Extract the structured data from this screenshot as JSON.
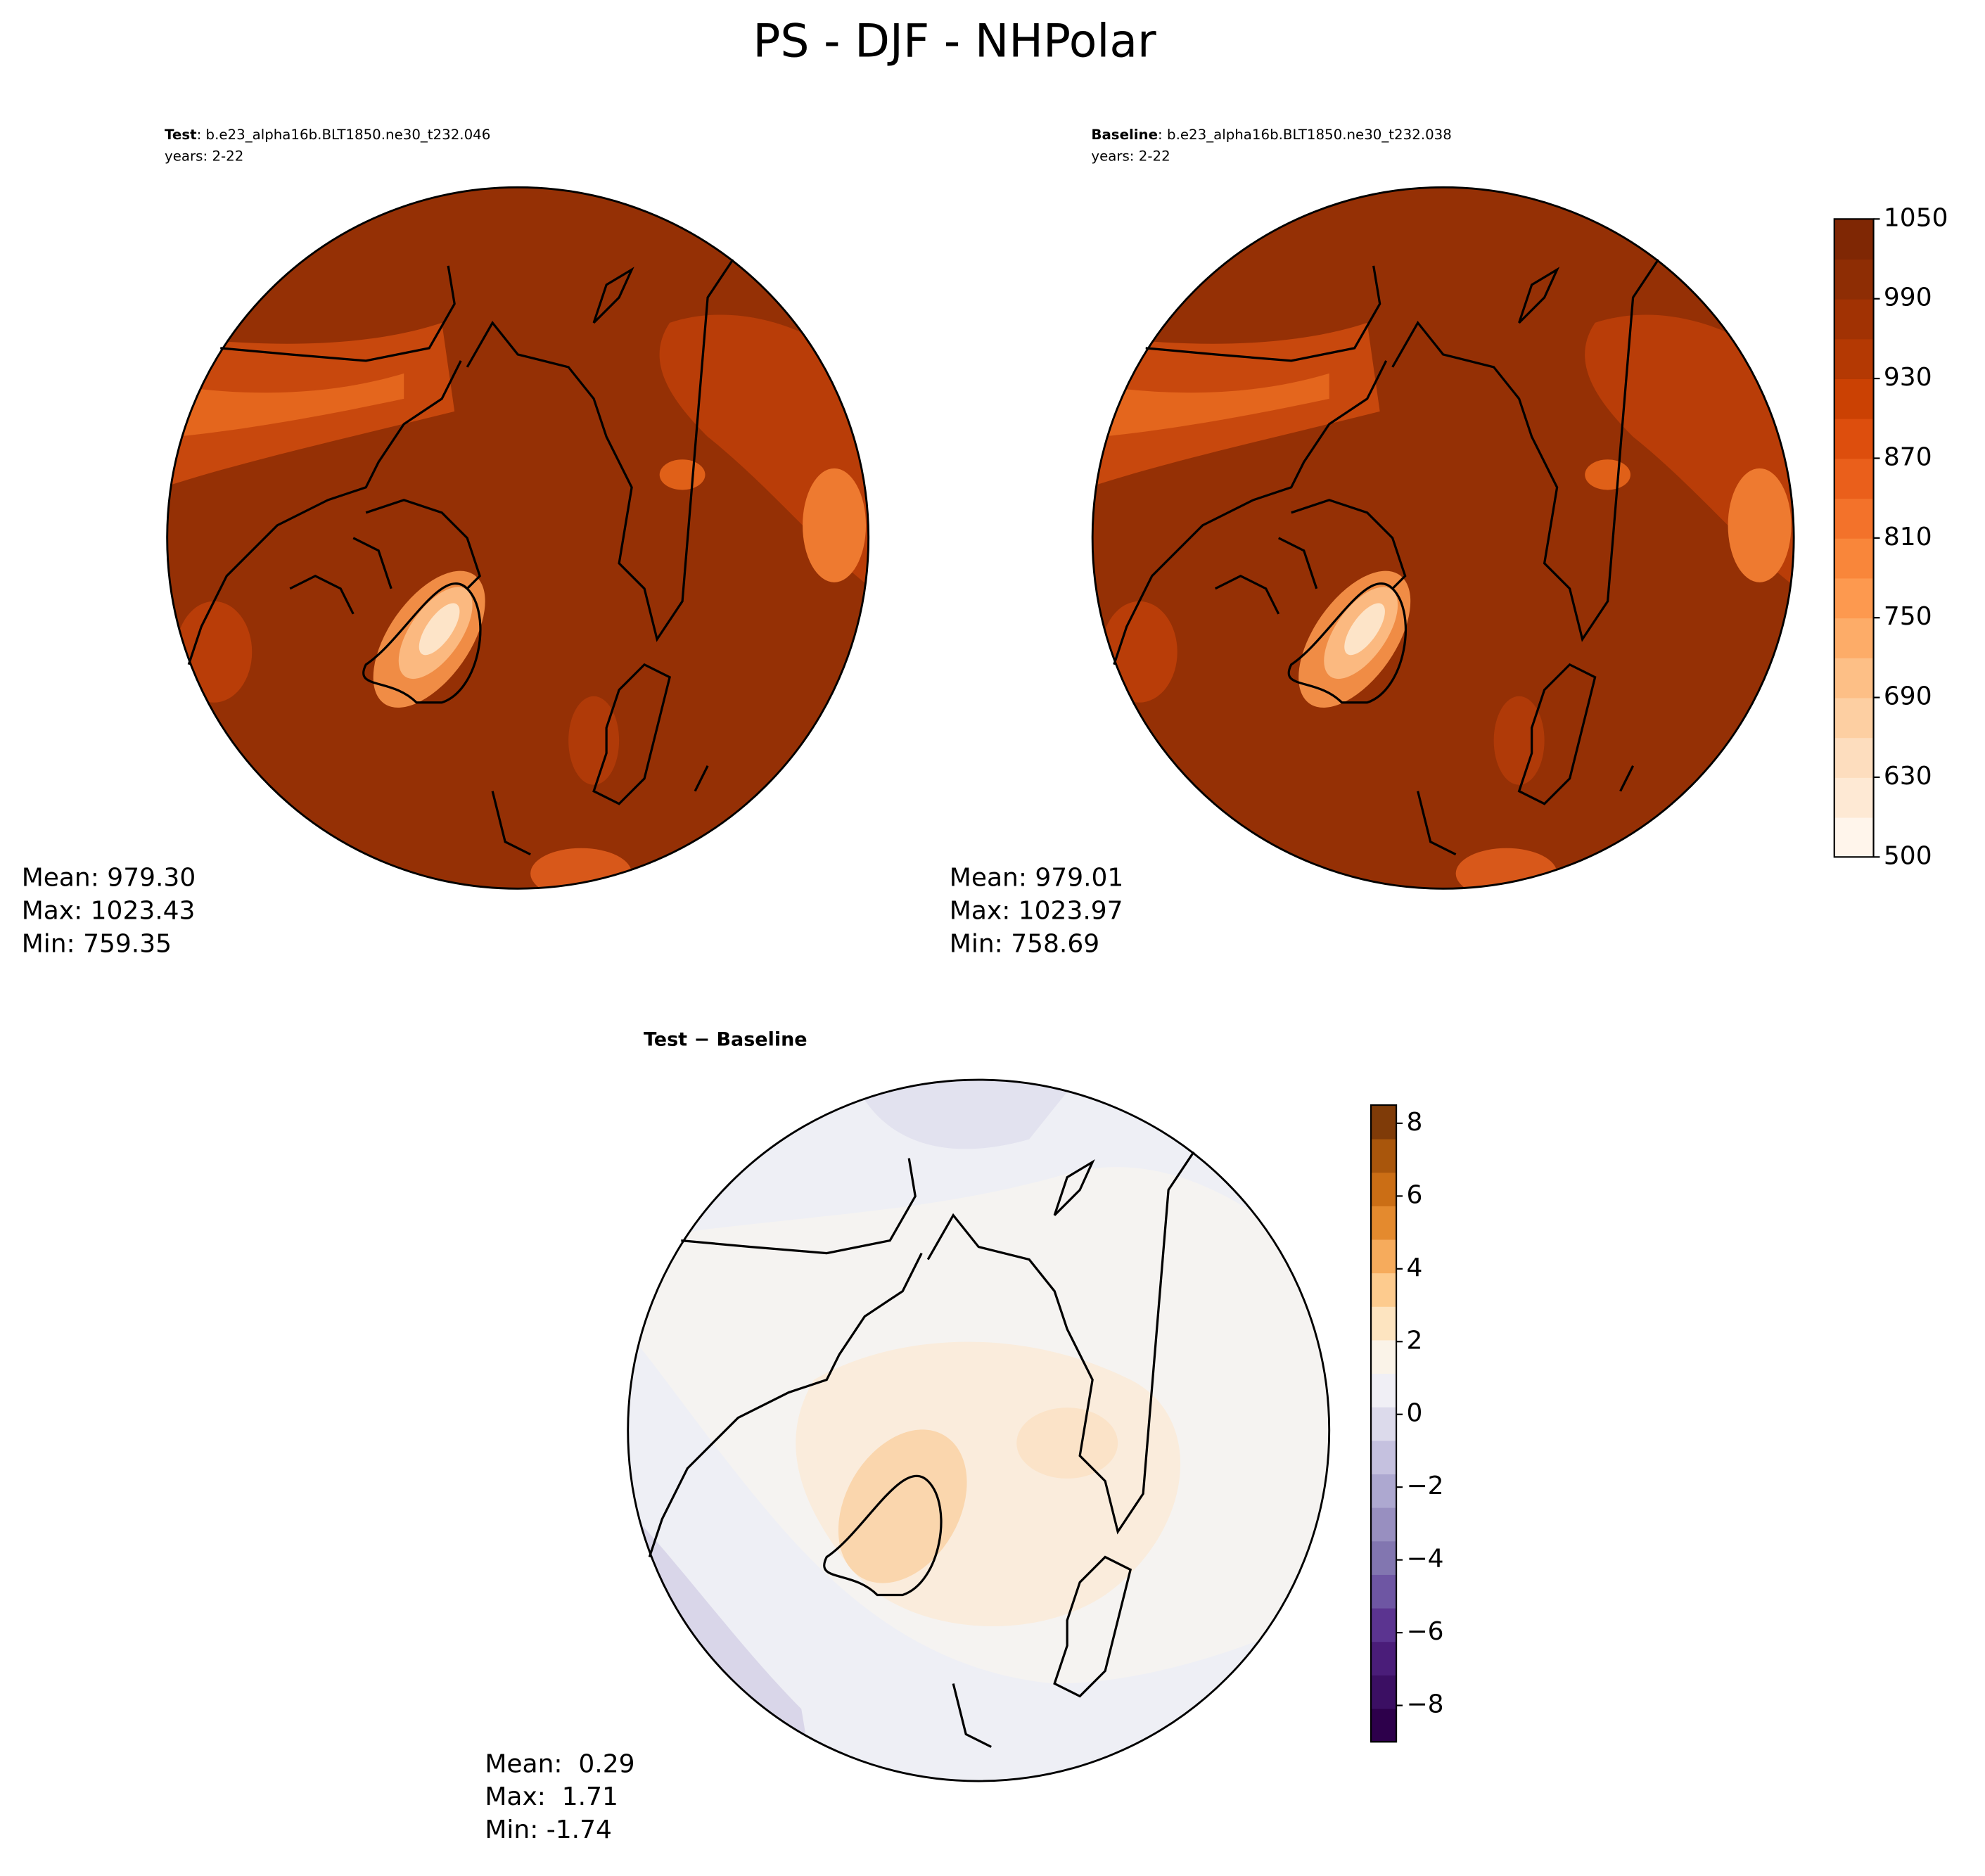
{
  "chart_data": [
    {
      "type": "map",
      "suptitle": "PS - DJF - NHPolar",
      "label": "Test",
      "case": ": b.e23_alpha16b.BLT1850.ne30_t232.046",
      "years": "years: 2-22",
      "stats": [
        "Mean: 979.30",
        "Max: 1023.43",
        "Min: 759.35"
      ]
    },
    {
      "type": "map",
      "label": "Baseline",
      "case": ": b.e23_alpha16b.BLT1850.ne30_t232.038",
      "years": "years: 2-22",
      "stats": [
        "Mean: 979.01",
        "Max: 1023.97",
        "Min: 758.69"
      ],
      "colorbar": {
        "levels": [
          500,
          600,
          630,
          660,
          690,
          720,
          750,
          780,
          810,
          840,
          870,
          900,
          930,
          960,
          990,
          1020,
          1050
        ],
        "colors": [
          "#fff5eb",
          "#fee9d4",
          "#fdddbe",
          "#fdcfa2",
          "#fdbf86",
          "#fdac68",
          "#fd994f",
          "#f9863a",
          "#f3722a",
          "#ea5f1b",
          "#dd4e0d",
          "#cb4103",
          "#b43903",
          "#a13203",
          "#8e2d04",
          "#7f2704"
        ],
        "ticks": [
          500,
          630,
          690,
          750,
          810,
          870,
          930,
          990,
          1050
        ]
      }
    },
    {
      "type": "map",
      "title": "Test − Baseline",
      "stats": [
        "Mean:  0.29",
        "Max:  1.71",
        "Min: -1.74"
      ],
      "colorbar": {
        "lim": [
          -9,
          8.5
        ],
        "colors": [
          "#2d004b",
          "#3b0f63",
          "#4a1d79",
          "#5b3490",
          "#6e56a3",
          "#8276b0",
          "#988fc0",
          "#ada8d0",
          "#c5c1df",
          "#dcdaeb",
          "#f0eff5",
          "#faf3e8",
          "#fde4c0",
          "#fdcb8e",
          "#f6ab5c",
          "#e48a2e",
          "#cb6e15",
          "#a9560c",
          "#7f3b08"
        ],
        "ticks": [
          {
            "value": -8,
            "label": "−8"
          },
          {
            "value": -6,
            "label": "−6"
          },
          {
            "value": -4,
            "label": "−4"
          },
          {
            "value": -2,
            "label": "−2"
          },
          0,
          2,
          4,
          6,
          8
        ]
      }
    }
  ]
}
